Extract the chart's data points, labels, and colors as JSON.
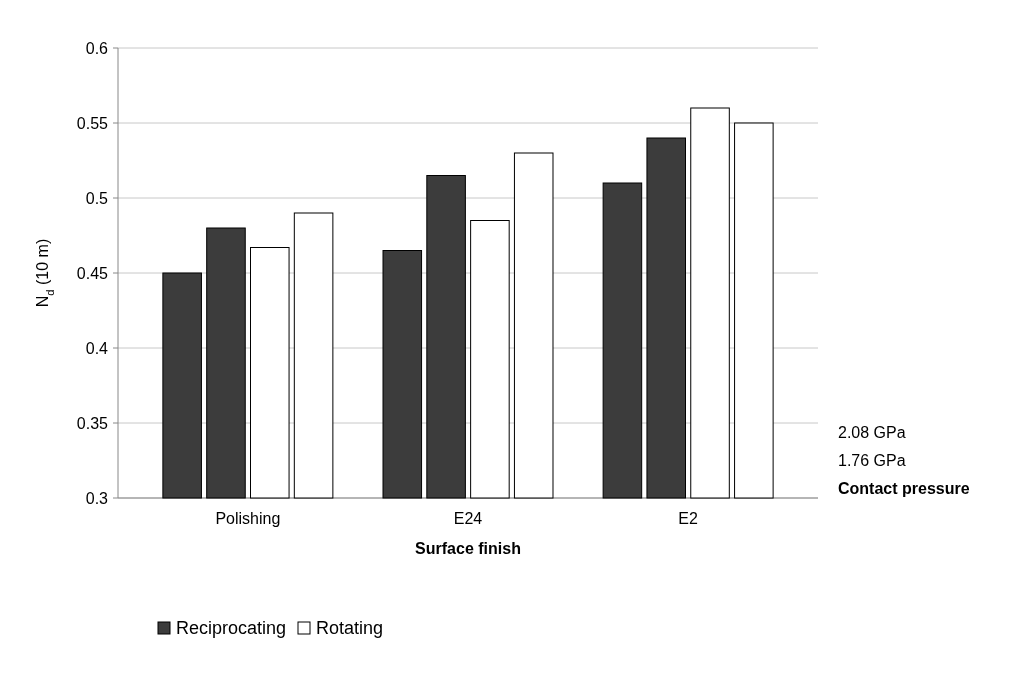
{
  "chart_data": {
    "type": "bar",
    "xlabel": "Surface finish",
    "ylabel": "N$_{d}$ (10 m)",
    "categories": [
      "Polishing",
      "E24",
      "E2"
    ],
    "series": [
      {
        "name": "Reciprocating",
        "color": "#3c3c3c",
        "values": [
          0.45,
          0.465,
          0.51
        ]
      },
      {
        "color": "#3c3c3c",
        "values": [
          0.48,
          0.515,
          0.54
        ]
      },
      {
        "name": "Rotating",
        "color": "#ffffff",
        "values": [
          0.467,
          0.485,
          0.56
        ]
      },
      {
        "color": "#ffffff",
        "values": [
          0.49,
          0.53,
          0.55
        ]
      }
    ],
    "ylim": [
      0.3,
      0.6
    ],
    "yticks": [
      0.3,
      0.35,
      0.4,
      0.45,
      0.5,
      0.55,
      0.6
    ],
    "grid": "y",
    "legend": "bottom left",
    "annotations": [
      "2.08 GPa",
      "1.76 GPa",
      "Contact pressure"
    ]
  }
}
